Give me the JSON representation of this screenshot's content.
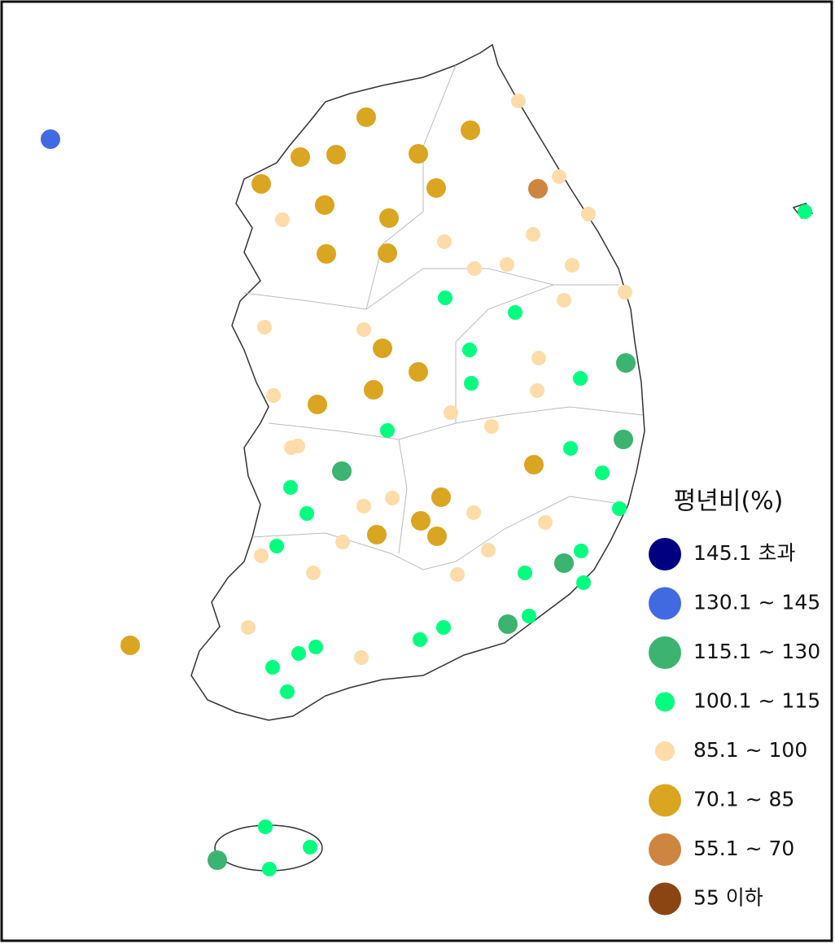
{
  "legend": {
    "title": "평년비(%)",
    "items": [
      {
        "label": "145.1 초과",
        "color": "#000080"
      },
      {
        "label": "130.1 ~ 145",
        "color": "#4169e1"
      },
      {
        "label": "115.1 ~ 130",
        "color": "#3cb371"
      },
      {
        "label": "100.1 ~ 115",
        "color": "#00ff7f"
      },
      {
        "label": "85.1 ~ 100",
        "color": "#fddcaa"
      },
      {
        "label": "70.1 ~ 85",
        "color": "#daa520"
      },
      {
        "label": "55.1 ~ 70",
        "color": "#cd853f"
      },
      {
        "label": "55 이하",
        "color": "#8b4513"
      }
    ]
  }
}
